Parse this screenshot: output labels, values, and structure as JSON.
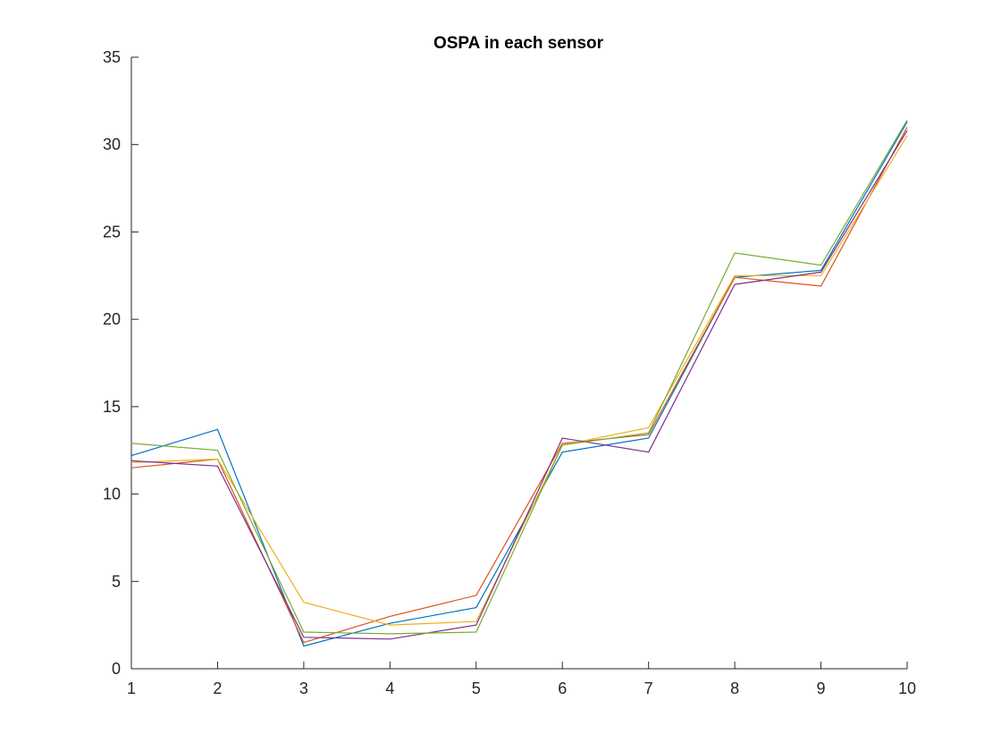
{
  "chart_data": {
    "type": "line",
    "title": "OSPA in each sensor",
    "xlabel": "",
    "ylabel": "",
    "x": [
      1,
      2,
      3,
      4,
      5,
      6,
      7,
      8,
      9,
      10
    ],
    "xlim": [
      1,
      10
    ],
    "ylim": [
      0,
      35
    ],
    "xticks": [
      1,
      2,
      3,
      4,
      5,
      6,
      7,
      8,
      9,
      10
    ],
    "yticks": [
      0,
      5,
      10,
      15,
      20,
      25,
      30,
      35
    ],
    "grid": false,
    "legend": "none",
    "series": [
      {
        "color": "#0072BD",
        "values": [
          12.2,
          13.7,
          1.3,
          2.6,
          3.5,
          12.4,
          13.2,
          22.4,
          22.8,
          31.3
        ]
      },
      {
        "color": "#D95319",
        "values": [
          11.5,
          12.0,
          1.5,
          3.0,
          4.2,
          12.9,
          13.4,
          22.4,
          21.9,
          31.0
        ]
      },
      {
        "color": "#EDB120",
        "values": [
          11.8,
          12.0,
          3.8,
          2.5,
          2.7,
          12.8,
          13.8,
          22.5,
          22.5,
          30.5
        ]
      },
      {
        "color": "#7E2F8E",
        "values": [
          11.9,
          11.6,
          1.8,
          1.7,
          2.5,
          13.2,
          12.4,
          22.0,
          22.7,
          30.8
        ]
      },
      {
        "color": "#77AC30",
        "values": [
          12.9,
          12.5,
          2.1,
          2.0,
          2.1,
          12.8,
          13.5,
          23.8,
          23.1,
          31.4
        ]
      }
    ]
  }
}
